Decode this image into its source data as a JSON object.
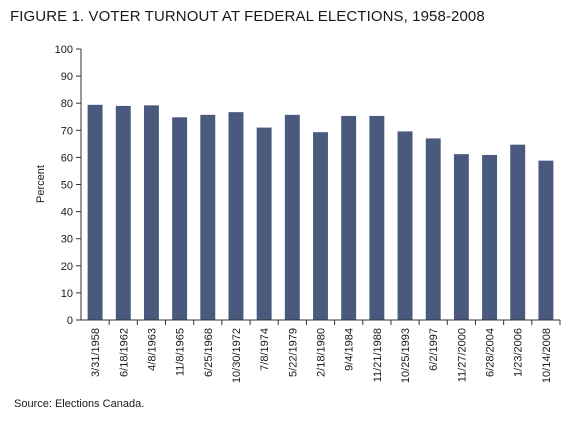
{
  "title": "FIGURE 1. VOTER TURNOUT AT FEDERAL ELECTIONS, 1958-2008",
  "source": "Source: Elections Canada.",
  "colors": {
    "bar": "#4a5a7e",
    "axis": "#333333"
  },
  "chart_data": {
    "type": "bar",
    "title": "FIGURE 1. VOTER TURNOUT AT FEDERAL ELECTIONS, 1958-2008",
    "xlabel": "",
    "ylabel": "Percent",
    "ylim": [
      0,
      100
    ],
    "yticks": [
      0,
      10,
      20,
      30,
      40,
      50,
      60,
      70,
      80,
      90,
      100
    ],
    "grid": false,
    "categories": [
      "3/31/1958",
      "6/18/1962",
      "4/8/1963",
      "11/8/1965",
      "6/25/1968",
      "10/30/1972",
      "7/8/1974",
      "5/22/1979",
      "2/18/1980",
      "9/4/1984",
      "11/21/1988",
      "10/25/1993",
      "6/2/1997",
      "11/27/2000",
      "6/28/2004",
      "1/23/2006",
      "10/14/2008"
    ],
    "values": [
      79.4,
      79.0,
      79.2,
      74.8,
      75.7,
      76.7,
      71.0,
      75.7,
      69.3,
      75.3,
      75.3,
      69.6,
      67.0,
      61.2,
      60.9,
      64.7,
      58.8
    ]
  }
}
